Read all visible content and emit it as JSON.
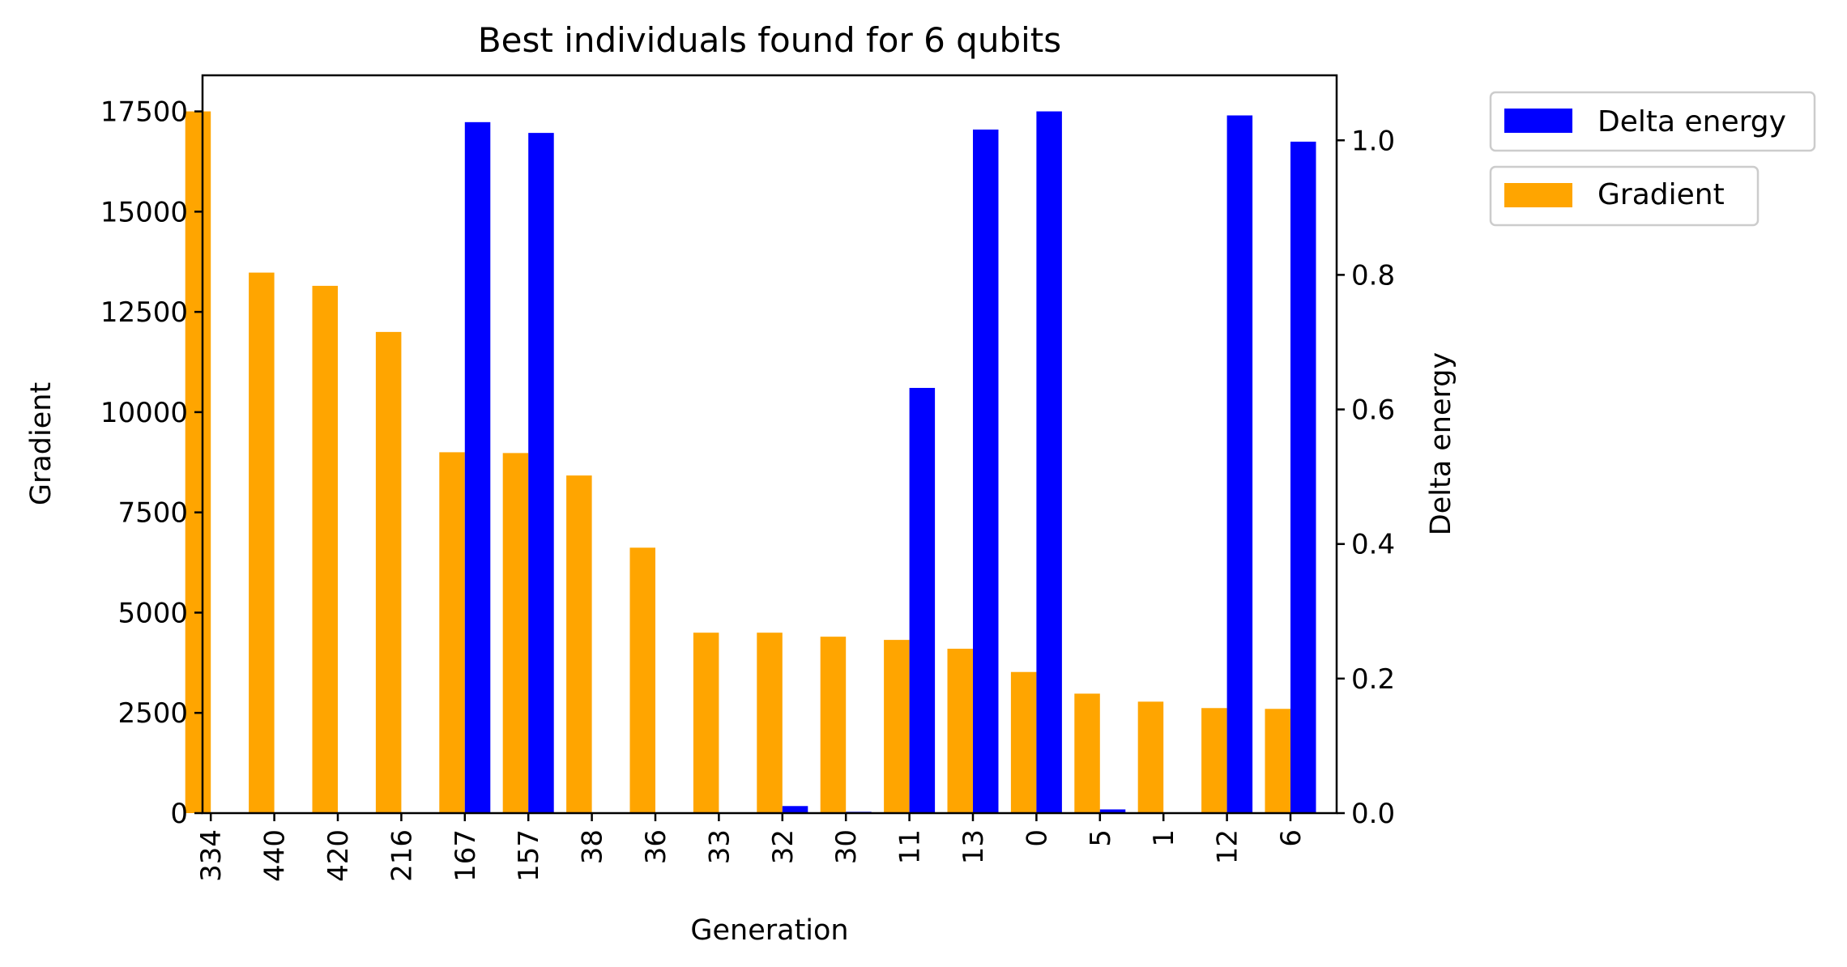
{
  "chart_data": {
    "type": "bar",
    "title": "Best individuals found for 6 qubits",
    "xlabel": "Generation",
    "ylabel_left": "Gradient",
    "ylabel_right": "Delta energy",
    "categories": [
      "334",
      "440",
      "420",
      "216",
      "167",
      "157",
      "38",
      "36",
      "33",
      "32",
      "30",
      "11",
      "13",
      "0",
      "5",
      "1",
      "12",
      "6"
    ],
    "series": [
      {
        "name": "Gradient",
        "axis": "left",
        "color": "#ffa500",
        "values": [
          17500,
          13480,
          13150,
          12000,
          9000,
          8980,
          8420,
          6620,
          4500,
          4500,
          4400,
          4320,
          4100,
          3520,
          2980,
          2780,
          2620,
          2600
        ]
      },
      {
        "name": "Delta energy",
        "axis": "right",
        "color": "#0000ff",
        "values": [
          0.0,
          0.0,
          0.0,
          0.0,
          1.027,
          1.011,
          0.0,
          0.0,
          0.0,
          0.0105,
          0.002,
          0.632,
          1.016,
          1.043,
          0.0055,
          0.0,
          1.037,
          0.998
        ]
      }
    ],
    "ylim_left": [
      0,
      18400
    ],
    "ylim_right": [
      0,
      1.0966
    ],
    "yticks_left": [
      0,
      2500,
      5000,
      7500,
      10000,
      12500,
      15000,
      17500
    ],
    "yticks_left_labels": [
      "0",
      "2500",
      "5000",
      "7500",
      "10000",
      "12500",
      "15000",
      "17500"
    ],
    "yticks_right": [
      0,
      0.2,
      0.4,
      0.6,
      0.8,
      1.0
    ],
    "yticks_right_labels": [
      "0.0",
      "0.2",
      "0.4",
      "0.6",
      "0.8",
      "1.0"
    ],
    "grid": false,
    "legend_position": "outside-top-right"
  }
}
